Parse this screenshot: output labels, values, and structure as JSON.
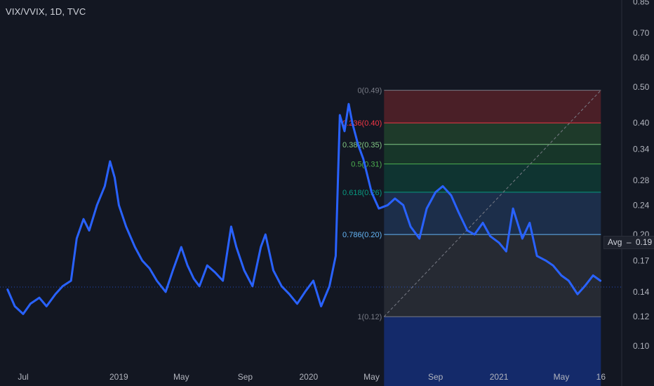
{
  "header": {
    "symbol": "VIX/VVIX, 1D, TVC"
  },
  "avg_badge": {
    "label": "Avg",
    "separator": "–",
    "value": "0.19"
  },
  "colors": {
    "background": "#131722",
    "line": "#2962ff",
    "axis_text": "#b2b5be",
    "grid": "#1b1f2b"
  },
  "chart_data": {
    "type": "line",
    "title": "VIX/VVIX, 1D, TVC",
    "xlabel": "",
    "ylabel": "",
    "ylim": [
      0.085,
      0.85
    ],
    "y_scale": "log",
    "grid": false,
    "x_ticks": [
      "Jul",
      "2019",
      "May",
      "Sep",
      "2020",
      "May",
      "Sep",
      "2021",
      "May",
      "16"
    ],
    "y_ticks": [
      "0.85",
      "0.70",
      "0.60",
      "0.50",
      "0.40",
      "0.34",
      "0.28",
      "0.24",
      "0.20",
      "0.17",
      "0.14",
      "0.12",
      "0.10"
    ],
    "series": [
      {
        "x": [
          "2018-06-01",
          "2018-06-15",
          "2018-07-01",
          "2018-07-15",
          "2018-08-01",
          "2018-08-15",
          "2018-09-01",
          "2018-09-15",
          "2018-10-01",
          "2018-10-12",
          "2018-10-25",
          "2018-11-05",
          "2018-11-20",
          "2018-12-05",
          "2018-12-15",
          "2018-12-24",
          "2019-01-01",
          "2019-01-15",
          "2019-02-01",
          "2019-02-15",
          "2019-03-01",
          "2019-03-15",
          "2019-04-01",
          "2019-04-15",
          "2019-05-01",
          "2019-05-13",
          "2019-05-25",
          "2019-06-05",
          "2019-06-20",
          "2019-07-05",
          "2019-07-20",
          "2019-08-05",
          "2019-08-15",
          "2019-08-30",
          "2019-09-15",
          "2019-10-01",
          "2019-10-10",
          "2019-10-25",
          "2019-11-10",
          "2019-11-25",
          "2019-12-10",
          "2019-12-25",
          "2020-01-10",
          "2020-01-25",
          "2020-02-10",
          "2020-02-22",
          "2020-03-01",
          "2020-03-10",
          "2020-03-18",
          "2020-03-25",
          "2020-04-05",
          "2020-04-15",
          "2020-05-01",
          "2020-05-15",
          "2020-06-01",
          "2020-06-15",
          "2020-07-01",
          "2020-07-15",
          "2020-08-01",
          "2020-08-15",
          "2020-09-01",
          "2020-09-15",
          "2020-10-01",
          "2020-10-15",
          "2020-11-01",
          "2020-11-15",
          "2020-12-01",
          "2020-12-15",
          "2021-01-01",
          "2021-01-15",
          "2021-01-28",
          "2021-02-15",
          "2021-03-01",
          "2021-03-15",
          "2021-04-01",
          "2021-04-15",
          "2021-05-01",
          "2021-05-15",
          "2021-06-01",
          "2021-06-15",
          "2021-07-01",
          "2021-07-15"
        ],
        "y": [
          0.142,
          0.128,
          0.122,
          0.13,
          0.135,
          0.128,
          0.138,
          0.145,
          0.15,
          0.195,
          0.22,
          0.205,
          0.24,
          0.27,
          0.315,
          0.285,
          0.24,
          0.21,
          0.185,
          0.17,
          0.162,
          0.15,
          0.14,
          0.16,
          0.185,
          0.165,
          0.152,
          0.145,
          0.165,
          0.158,
          0.15,
          0.21,
          0.185,
          0.16,
          0.145,
          0.185,
          0.2,
          0.16,
          0.145,
          0.138,
          0.13,
          0.14,
          0.15,
          0.128,
          0.145,
          0.175,
          0.42,
          0.38,
          0.45,
          0.4,
          0.35,
          0.32,
          0.26,
          0.235,
          0.24,
          0.25,
          0.24,
          0.21,
          0.195,
          0.235,
          0.26,
          0.27,
          0.255,
          0.23,
          0.205,
          0.2,
          0.215,
          0.198,
          0.19,
          0.18,
          0.235,
          0.195,
          0.215,
          0.175,
          0.17,
          0.165,
          0.155,
          0.15,
          0.138,
          0.145,
          0.155,
          0.15
        ]
      }
    ],
    "fibonacci": {
      "levels": [
        {
          "label": "0(0.49)",
          "value": 0.49,
          "color": "#787b86"
        },
        {
          "label": "0.236(0.40)",
          "value": 0.4,
          "color": "#f23645"
        },
        {
          "label": "0.382(0.35)",
          "value": 0.35,
          "color": "#81c784"
        },
        {
          "label": "0.5(0.31)",
          "value": 0.31,
          "color": "#4caf50"
        },
        {
          "label": "0.618(0.26)",
          "value": 0.26,
          "color": "#089981"
        },
        {
          "label": "0.786(0.20)",
          "value": 0.2,
          "color": "#64b5f6"
        },
        {
          "label": "1(0.12)",
          "value": 0.12,
          "color": "#787b86"
        }
      ],
      "fills": [
        "#4a1f27",
        "#1e3a2a",
        "#173629",
        "#0f3431",
        "#1c2e4a",
        "#262a33",
        "#142a6a"
      ],
      "start_date": "2020-05-25",
      "end_date": "2021-07-16"
    },
    "average": 0.19
  }
}
